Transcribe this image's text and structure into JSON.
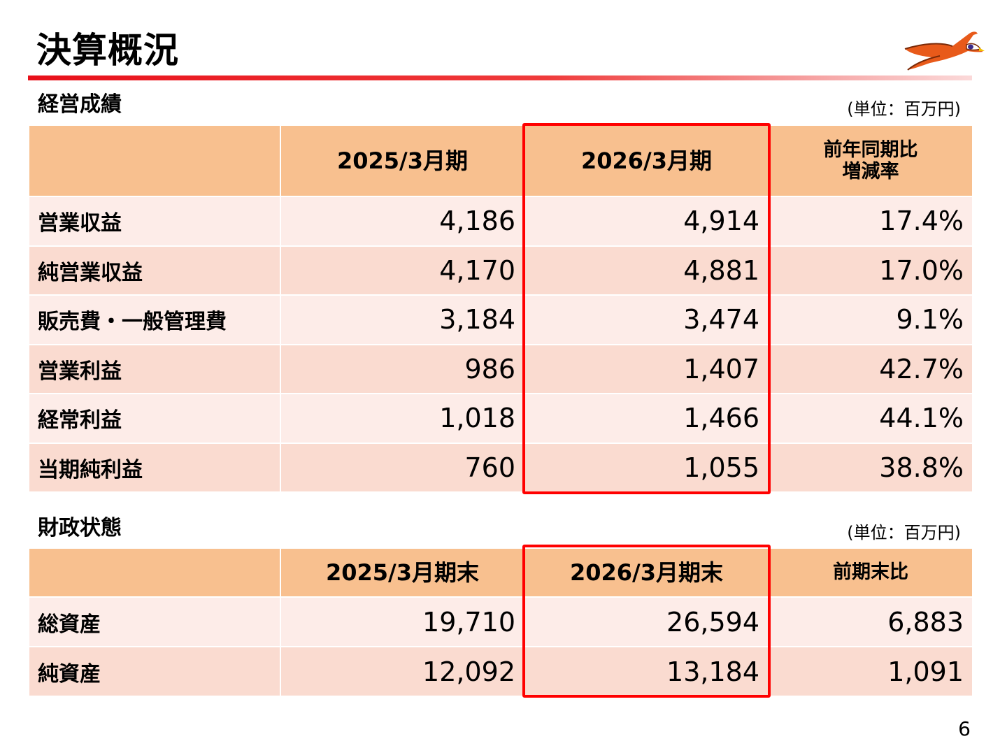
{
  "title": "決算概況",
  "performance": {
    "heading": "経営成績",
    "unit": "(単位：百万円)",
    "columns": [
      "2025/3月期",
      "2026/3月期",
      "前年同期比",
      "増減率"
    ],
    "rows": [
      {
        "label": "営業収益",
        "v2025": "4,186",
        "v2026": "4,914",
        "change": "17.4%"
      },
      {
        "label": "純営業収益",
        "v2025": "4,170",
        "v2026": "4,881",
        "change": "17.0%"
      },
      {
        "label": "販売費・一般管理費",
        "v2025": "3,184",
        "v2026": "3,474",
        "change": "9.1%"
      },
      {
        "label": "営業利益",
        "v2025": "986",
        "v2026": "1,407",
        "change": "42.7%"
      },
      {
        "label": "経常利益",
        "v2025": "1,018",
        "v2026": "1,466",
        "change": "44.1%"
      },
      {
        "label": "当期純利益",
        "v2025": "760",
        "v2026": "1,055",
        "change": "38.8%"
      }
    ]
  },
  "financial": {
    "heading": "財政状態",
    "unit": "(単位：百万円)",
    "columns": [
      "2025/3月期末",
      "2026/3月期末",
      "前期末比"
    ],
    "rows": [
      {
        "label": "総資産",
        "v2025": "19,710",
        "v2026": "26,594",
        "change": "6,883"
      },
      {
        "label": "純資産",
        "v2025": "12,092",
        "v2026": "13,184",
        "change": "1,091"
      }
    ]
  },
  "logo_icon": "bird-logo-icon",
  "colors": {
    "accent": "#e8101a",
    "header": "#f8c08f",
    "row_light": "#fdece8",
    "row_dark": "#fadbd0",
    "highlight": "#ff0000"
  },
  "page_number": "6"
}
